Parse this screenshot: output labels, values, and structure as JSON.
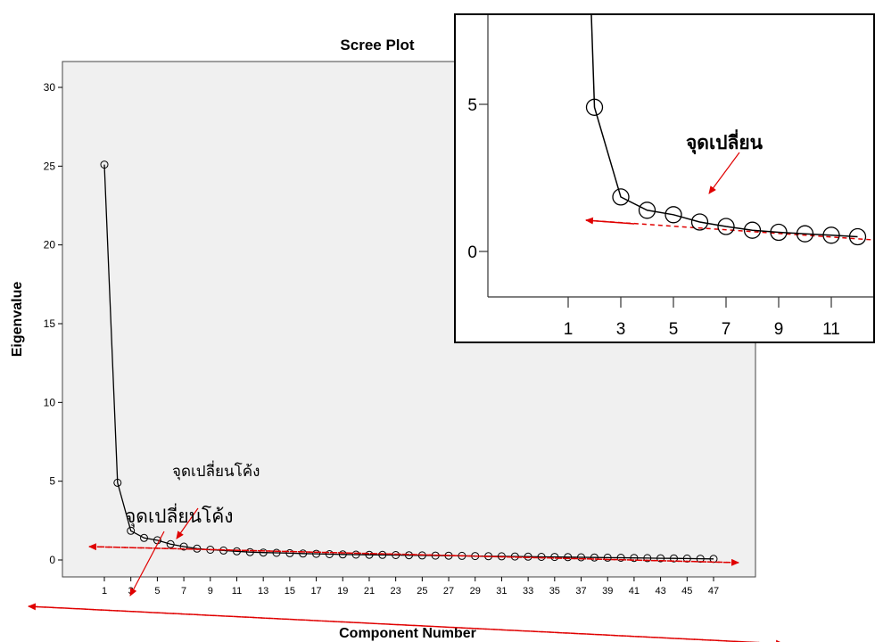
{
  "chart_data": [
    {
      "type": "line",
      "title": "Scree Plot",
      "xlabel": "Component Number",
      "ylabel": "Eigenvalue",
      "xlim": [
        1,
        47
      ],
      "ylim": [
        0,
        30
      ],
      "x_tick_labels": [
        "1",
        "3",
        "5",
        "7",
        "9",
        "11",
        "13",
        "15",
        "17",
        "19",
        "21",
        "23",
        "25",
        "27",
        "29",
        "31",
        "33",
        "35",
        "37",
        "39",
        "41",
        "43",
        "45",
        "47"
      ],
      "y_tick_labels": [
        "0",
        "5",
        "10",
        "15",
        "20",
        "25",
        "30"
      ],
      "grid": false,
      "series": [
        {
          "x": [
            1,
            2,
            3,
            4,
            5,
            6,
            7,
            8,
            9,
            10,
            11,
            12,
            13,
            14,
            15,
            16,
            17,
            18,
            19,
            20,
            21,
            22,
            23,
            24,
            25,
            26,
            27,
            28,
            29,
            30,
            31,
            32,
            33,
            34,
            35,
            36,
            37,
            38,
            39,
            40,
            41,
            42,
            43,
            44,
            45,
            46,
            47
          ],
          "values": [
            25.1,
            4.9,
            1.85,
            1.4,
            1.25,
            1.0,
            0.85,
            0.72,
            0.65,
            0.6,
            0.55,
            0.5,
            0.47,
            0.45,
            0.43,
            0.41,
            0.39,
            0.37,
            0.35,
            0.34,
            0.33,
            0.32,
            0.31,
            0.3,
            0.29,
            0.28,
            0.27,
            0.26,
            0.25,
            0.24,
            0.23,
            0.22,
            0.21,
            0.2,
            0.19,
            0.18,
            0.17,
            0.16,
            0.15,
            0.14,
            0.13,
            0.12,
            0.11,
            0.1,
            0.09,
            0.08,
            0.07
          ]
        }
      ],
      "annotations": [
        "จุดเปลี่ยนโค้ง",
        "จุดเปลี่ยนโค้ง"
      ]
    },
    {
      "type": "line",
      "title": "",
      "xlim": [
        0,
        12
      ],
      "ylim": [
        -1.5,
        7
      ],
      "x_tick_labels": [
        "1",
        "3",
        "5",
        "7",
        "9",
        "11"
      ],
      "y_tick_labels": [
        "5",
        "0"
      ],
      "series": [
        {
          "x": [
            2,
            3,
            4,
            5,
            6,
            7,
            8,
            9,
            10,
            11,
            12
          ],
          "values": [
            4.9,
            1.85,
            1.4,
            1.25,
            1.0,
            0.85,
            0.72,
            0.65,
            0.6,
            0.55,
            0.5
          ]
        }
      ],
      "annotations": [
        "จุดเปลี่ยน"
      ]
    }
  ],
  "colors": {
    "plot_background": "#f0f0f0",
    "line": "#000000",
    "arrow": "#e00000"
  }
}
